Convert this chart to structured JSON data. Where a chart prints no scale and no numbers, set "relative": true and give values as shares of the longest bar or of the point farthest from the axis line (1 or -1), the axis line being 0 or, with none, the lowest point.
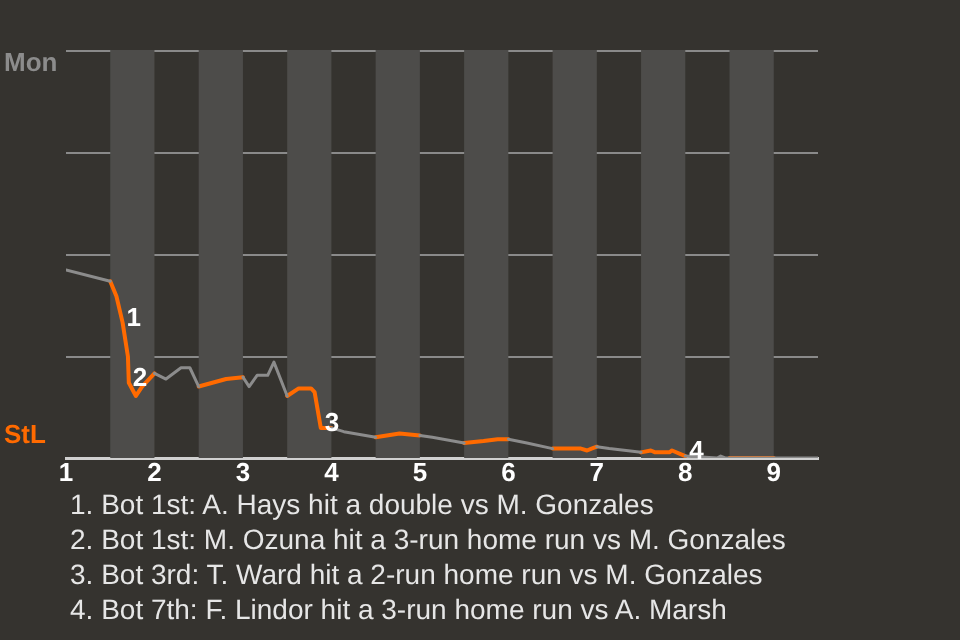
{
  "chart_data": {
    "type": "line",
    "x": [
      1.0,
      1.5,
      1.57,
      1.64,
      1.7,
      1.71,
      1.79,
      1.86,
      2.0,
      2.13,
      2.3,
      2.4,
      2.5,
      2.81,
      3.0,
      3.07,
      3.16,
      3.28,
      3.35,
      3.5,
      3.63,
      3.77,
      3.81,
      3.88,
      4.0,
      4.14,
      4.5,
      4.77,
      5.0,
      5.14,
      5.5,
      5.72,
      5.88,
      6.0,
      6.21,
      6.5,
      6.82,
      6.89,
      6.94,
      7.0,
      7.14,
      7.5,
      7.61,
      7.66,
      7.82,
      7.85,
      8.0,
      8.36,
      8.4,
      8.45,
      8.5,
      9.0,
      9.5
    ],
    "series": [
      {
        "name": "Mon",
        "color": "#8c8c8c",
        "values": [
          1,
          0.94,
          null,
          null,
          null,
          null,
          null,
          null,
          0.45,
          0.42,
          0.48,
          0.48,
          0.38,
          null,
          0.43,
          0.38,
          0.44,
          0.44,
          0.51,
          0.33,
          null,
          null,
          null,
          null,
          0.16,
          0.14,
          0.11,
          null,
          0.12,
          0.11,
          0.08,
          null,
          null,
          0.1,
          0.08,
          0.05,
          null,
          null,
          null,
          0.06,
          0.05,
          0.03,
          null,
          null,
          null,
          null,
          0.01,
          0,
          0.01,
          0,
          0,
          0,
          0
        ]
      },
      {
        "name": "StL",
        "color": "#ff6a00",
        "values": [
          null,
          0.94,
          0.86,
          0.72,
          0.54,
          0.4,
          0.33,
          0.38,
          0.45,
          null,
          null,
          null,
          0.38,
          0.42,
          0.43,
          null,
          null,
          null,
          null,
          0.33,
          0.37,
          0.37,
          0.35,
          0.16,
          0.16,
          null,
          0.11,
          0.13,
          0.12,
          null,
          0.08,
          0.09,
          0.1,
          0.1,
          null,
          0.05,
          0.05,
          0.04,
          0.05,
          0.06,
          null,
          0.03,
          0.04,
          0.03,
          0.03,
          0.04,
          0.01,
          null,
          null,
          null,
          0,
          0,
          null
        ]
      }
    ],
    "xlim": [
      1,
      9.5
    ],
    "xticks": [
      1,
      2,
      3,
      4,
      5,
      6,
      7,
      8,
      9
    ],
    "relative": true,
    "ref_lines": [
      {
        "axis": "y",
        "value": 0.54,
        "color": "#8a8a8a"
      },
      {
        "axis": "y",
        "value": 1.09,
        "color": "#8a8a8a"
      },
      {
        "axis": "y",
        "value": 1.63,
        "color": "#8a8a8a"
      },
      {
        "axis": "y",
        "value": 2.17,
        "color": "#8a8a8a"
      }
    ],
    "legend": false,
    "tick_labels": "x",
    "marker": "none",
    "line_style": "solid",
    "bands": [
      {
        "axis": "x",
        "from": 1.5,
        "to": 2,
        "color": "#4d4c4a"
      },
      {
        "axis": "x",
        "from": 2.5,
        "to": 3,
        "color": "#4d4c4a"
      },
      {
        "axis": "x",
        "from": 3.5,
        "to": 4,
        "color": "#4d4c4a"
      },
      {
        "axis": "x",
        "from": 4.5,
        "to": 5,
        "color": "#4d4c4a"
      },
      {
        "axis": "x",
        "from": 5.5,
        "to": 6,
        "color": "#4d4c4a"
      },
      {
        "axis": "x",
        "from": 6.5,
        "to": 7,
        "color": "#4d4c4a"
      },
      {
        "axis": "x",
        "from": 7.5,
        "to": 8,
        "color": "#4d4c4a"
      },
      {
        "axis": "x",
        "from": 8.5,
        "to": 9,
        "color": "#4d4c4a"
      }
    ],
    "annotations": [
      {
        "text": "1",
        "x": 1.64,
        "y": 0.72
      },
      {
        "text": "2",
        "x": 1.71,
        "y": 0.4
      },
      {
        "text": "3",
        "x": 3.88,
        "y": 0.16
      },
      {
        "text": "4",
        "x": 8.0,
        "y": 0.01
      },
      "1. Bot 1st: A. Hays hit a double vs M. Gonzales",
      "2. Bot 1st: M. Ozuna hit a 3-run home run vs M. Gonzales",
      "3. Bot 3rd: T. Ward hit a 2-run home run vs M. Gonzales",
      "4. Bot 7th: F. Lindor hit a 3-run home run vs A. Marsh"
    ]
  }
}
